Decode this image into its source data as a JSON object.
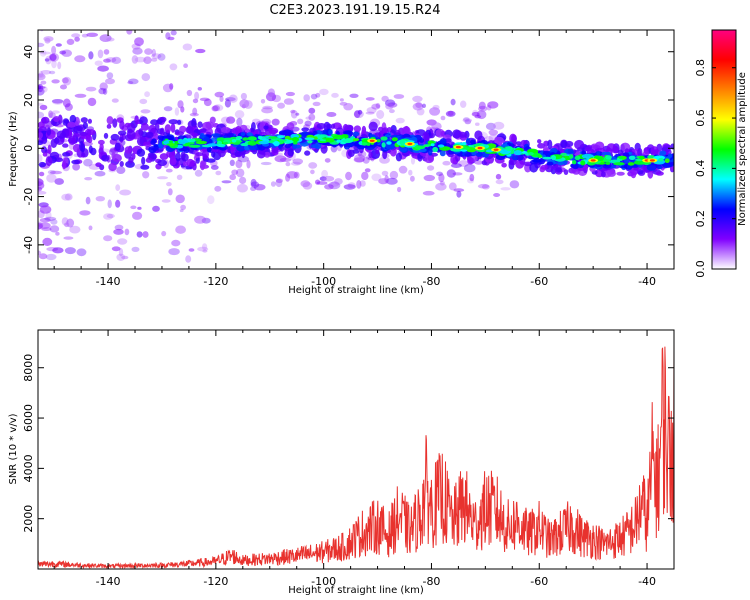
{
  "chart_data": [
    {
      "type": "heatmap",
      "title": "C2E3.2023.191.19.15.R24",
      "xlabel": "Height of straight line (km)",
      "ylabel": "Frequency (Hz)",
      "xlim": [
        -153,
        -35
      ],
      "ylim": [
        -50,
        49
      ],
      "xticks": [
        -140,
        -120,
        -100,
        -80,
        -60,
        -40
      ],
      "yticks": [
        -40,
        -20,
        0,
        20,
        40
      ],
      "grid": false,
      "ridge_line": {
        "x": [
          -153,
          -140,
          -125,
          -115,
          -100,
          -90,
          -80,
          -70,
          -60,
          -50,
          -45,
          -40,
          -35
        ],
        "y": [
          3,
          2,
          2,
          3,
          4,
          3,
          1,
          0,
          -3,
          -5,
          -5,
          -5,
          -5
        ]
      },
      "colorbar": {
        "label": "Normalized spectral amplitude",
        "range": [
          0,
          0.95
        ],
        "ticks": [
          "0.0",
          "0.2",
          "0.4",
          "0.6",
          "0.8"
        ],
        "colormap": [
          "#ffffff",
          "#8000ff",
          "#0000ff",
          "#00ffff",
          "#00ff00",
          "#ffff00",
          "#ff8000",
          "#ff0000",
          "#ff0080"
        ]
      }
    },
    {
      "type": "line",
      "title": "",
      "xlabel": "Height of straight line (km)",
      "ylabel": "SNR (10 * v/v)",
      "xlim": [
        -153,
        -35
      ],
      "ylim": [
        0,
        9500
      ],
      "xticks": [
        -140,
        -120,
        -100,
        -80,
        -60,
        -40
      ],
      "yticks": [
        2000,
        4000,
        6000,
        8000
      ],
      "grid": false,
      "series": [
        {
          "color": "#e8322e",
          "x": [
            -153,
            -150,
            -145,
            -140,
            -135,
            -130,
            -125,
            -120,
            -117,
            -115,
            -110,
            -105,
            -100,
            -96,
            -93,
            -90,
            -88,
            -86,
            -84,
            -82,
            -81,
            -80,
            -78,
            -76,
            -74,
            -72,
            -70,
            -68,
            -66,
            -64,
            -62,
            -60,
            -58,
            -56,
            -54,
            -52,
            -50,
            -48,
            -46,
            -44,
            -42,
            -41,
            -40,
            -39,
            -38,
            -37,
            -36,
            -35
          ],
          "y": [
            250,
            280,
            200,
            150,
            180,
            200,
            280,
            400,
            700,
            450,
            550,
            700,
            900,
            1200,
            1900,
            2300,
            1800,
            2800,
            2000,
            2900,
            4300,
            3200,
            3900,
            2500,
            3500,
            2300,
            3200,
            3100,
            2200,
            2500,
            1800,
            2200,
            1500,
            1900,
            2300,
            1700,
            1600,
            1300,
            1500,
            1800,
            2400,
            3500,
            2500,
            5500,
            4500,
            8400,
            6000,
            7200
          ]
        }
      ]
    }
  ]
}
